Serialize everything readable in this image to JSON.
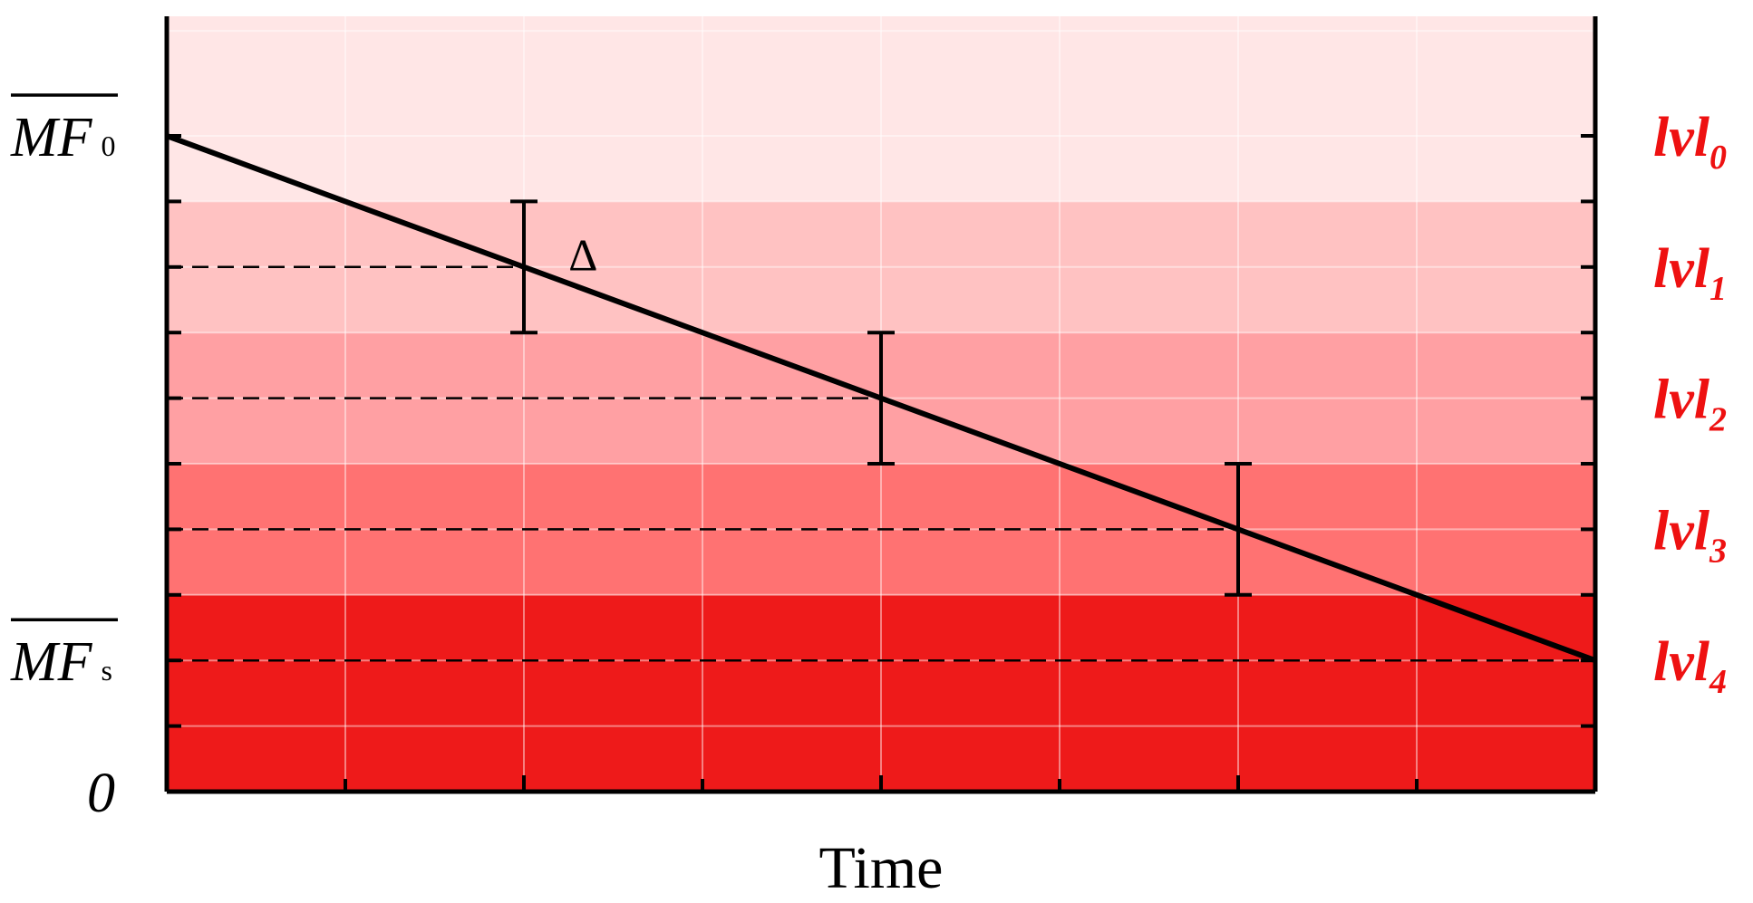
{
  "chart_data": {
    "type": "line",
    "title": "",
    "xlabel": "Time",
    "ylabel": "",
    "xlim": [
      0,
      8
    ],
    "ylim": [
      0,
      5
    ],
    "grid": true,
    "vertical_grid_x": [
      1,
      2,
      3,
      4,
      5,
      6,
      7
    ],
    "horizontal_grid_y": [
      0.5,
      1,
      1.5,
      2,
      2.5,
      3,
      3.5,
      4,
      4.5,
      5
    ],
    "left_axis_labels": [
      {
        "main": "MF",
        "sub": "0",
        "overline": true,
        "y": 5
      },
      {
        "main": "MF",
        "sub": "s",
        "overline": true,
        "y": 1
      },
      {
        "main": "0",
        "sub": "",
        "overline": false,
        "y": 0
      }
    ],
    "right_axis_labels": [
      {
        "main": "lvl",
        "sub": "0",
        "y": 5
      },
      {
        "main": "lvl",
        "sub": "1",
        "y": 4
      },
      {
        "main": "lvl",
        "sub": "2",
        "y": 3
      },
      {
        "main": "lvl",
        "sub": "3",
        "y": 2
      },
      {
        "main": "lvl",
        "sub": "4",
        "y": 1
      }
    ],
    "bands": [
      {
        "y0": 4.5,
        "y1": 6.0,
        "color": "#ffe6e6"
      },
      {
        "y0": 3.5,
        "y1": 4.5,
        "color": "#ffc2c2"
      },
      {
        "y0": 2.5,
        "y1": 3.5,
        "color": "#ffa0a3"
      },
      {
        "y0": 1.5,
        "y1": 2.5,
        "color": "#ff7272"
      },
      {
        "y0": 0.0,
        "y1": 1.5,
        "color": "#ee1a1a"
      }
    ],
    "series": [
      {
        "values": [
          [
            0,
            5
          ],
          [
            8,
            1
          ]
        ],
        "color": "#000000"
      }
    ],
    "level_lines": [
      {
        "x": 2,
        "y": 4
      },
      {
        "x": 4,
        "y": 3
      },
      {
        "x": 6,
        "y": 2
      },
      {
        "x": 8,
        "y": 1
      }
    ],
    "error_bars": [
      {
        "x": 2,
        "low": 3.5,
        "high": 4.5
      },
      {
        "x": 4,
        "low": 2.5,
        "high": 3.5
      },
      {
        "x": 6,
        "low": 1.5,
        "high": 2.5
      }
    ],
    "annotations": [
      {
        "text": "Δ",
        "x": 2.25,
        "y": 4.1
      }
    ]
  }
}
